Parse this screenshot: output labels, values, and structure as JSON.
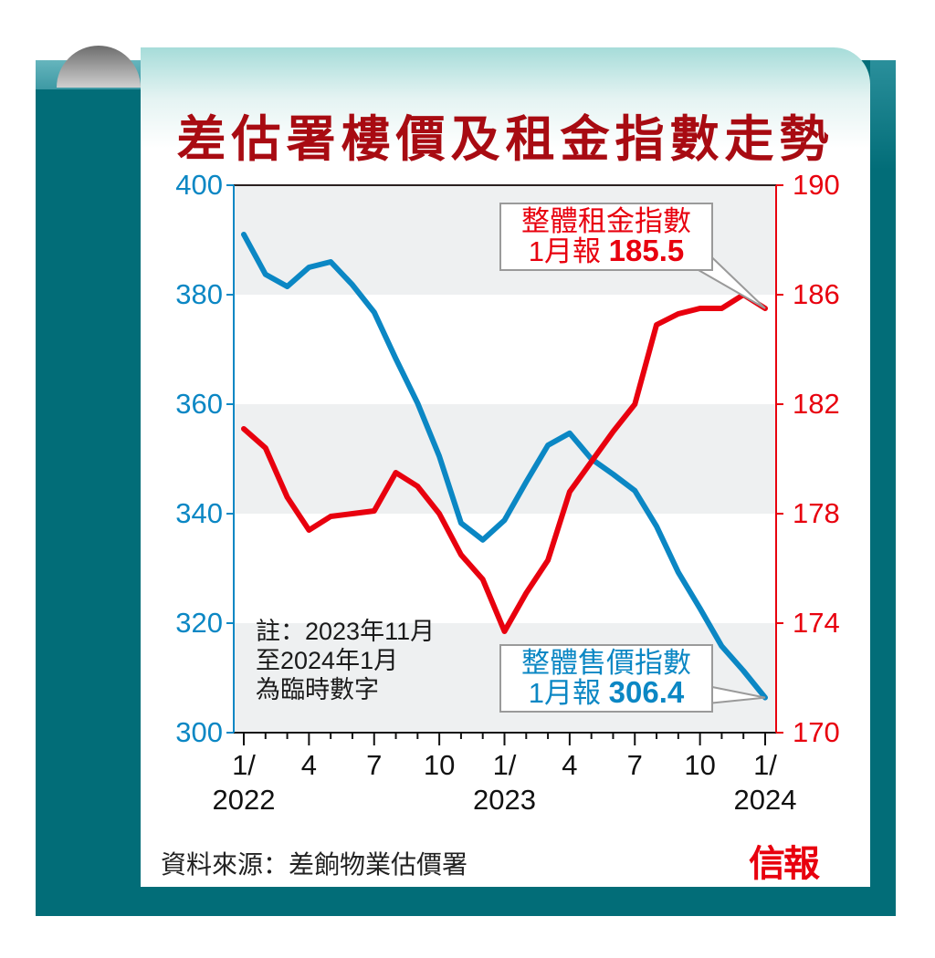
{
  "title": "差估署樓價及租金指數走勢",
  "source": "資料來源：差餉物業估價署",
  "logo": "信報",
  "note": {
    "line1": "註：2023年11月",
    "line2": "至2024年1月",
    "line3": "為臨時數字"
  },
  "callouts": {
    "rent": {
      "line1": "整體租金指數",
      "prefix": "1月報",
      "value": "185.5",
      "color": "#e8000e"
    },
    "price": {
      "line1": "整體售價指數",
      "prefix": "1月報",
      "value": "306.4",
      "color": "#0b87c4"
    }
  },
  "left_axis": {
    "ticks": [
      "400",
      "380",
      "360",
      "340",
      "320",
      "300"
    ],
    "color": "#0b87c4"
  },
  "right_axis": {
    "ticks": [
      "190",
      "186",
      "182",
      "178",
      "174",
      "170"
    ],
    "color": "#e8000e"
  },
  "x_axis": {
    "month_labels": [
      "1/",
      "4",
      "7",
      "10",
      "1/",
      "4",
      "7",
      "10",
      "1/"
    ],
    "year_labels": [
      "2022",
      "2023",
      "2024"
    ]
  },
  "chart_data": {
    "type": "line",
    "title": "差估署樓價及租金指數走勢",
    "xlabel": "",
    "x": [
      "2022-01",
      "2022-02",
      "2022-03",
      "2022-04",
      "2022-05",
      "2022-06",
      "2022-07",
      "2022-08",
      "2022-09",
      "2022-10",
      "2022-11",
      "2022-12",
      "2023-01",
      "2023-02",
      "2023-03",
      "2023-04",
      "2023-05",
      "2023-06",
      "2023-07",
      "2023-08",
      "2023-09",
      "2023-10",
      "2023-11",
      "2023-12",
      "2024-01"
    ],
    "series": [
      {
        "name": "整體售價指數",
        "axis": "left",
        "color": "#0b87c4",
        "values": [
          391.0,
          383.7,
          381.5,
          385.0,
          386.0,
          381.8,
          376.8,
          368.3,
          360.2,
          350.5,
          338.3,
          335.2,
          338.8,
          345.8,
          352.5,
          354.7,
          350.0,
          347.2,
          344.2,
          337.7,
          329.3,
          322.7,
          315.8,
          311.3,
          306.4
        ]
      },
      {
        "name": "整體租金指數",
        "axis": "right",
        "color": "#e8000e",
        "values": [
          181.1,
          180.4,
          178.6,
          177.4,
          177.9,
          178.0,
          178.1,
          179.5,
          179.0,
          178.0,
          176.5,
          175.6,
          173.7,
          175.1,
          176.3,
          178.8,
          179.9,
          181.0,
          182.0,
          184.9,
          185.3,
          185.5,
          185.5,
          186.0,
          185.5
        ]
      }
    ],
    "ylim_left": [
      300,
      400
    ],
    "ylim_right": [
      170,
      190
    ],
    "left_ticks": [
      300,
      320,
      340,
      360,
      380,
      400
    ],
    "right_ticks": [
      170,
      174,
      178,
      182,
      186,
      190
    ],
    "annotations": [
      "整體租金指數 1月報185.5",
      "整體售價指數 1月報306.4",
      "註：2023年11月至2024年1月為臨時數字"
    ],
    "grid": "alternating horizontal bands",
    "legend": "none (callout labels)"
  }
}
